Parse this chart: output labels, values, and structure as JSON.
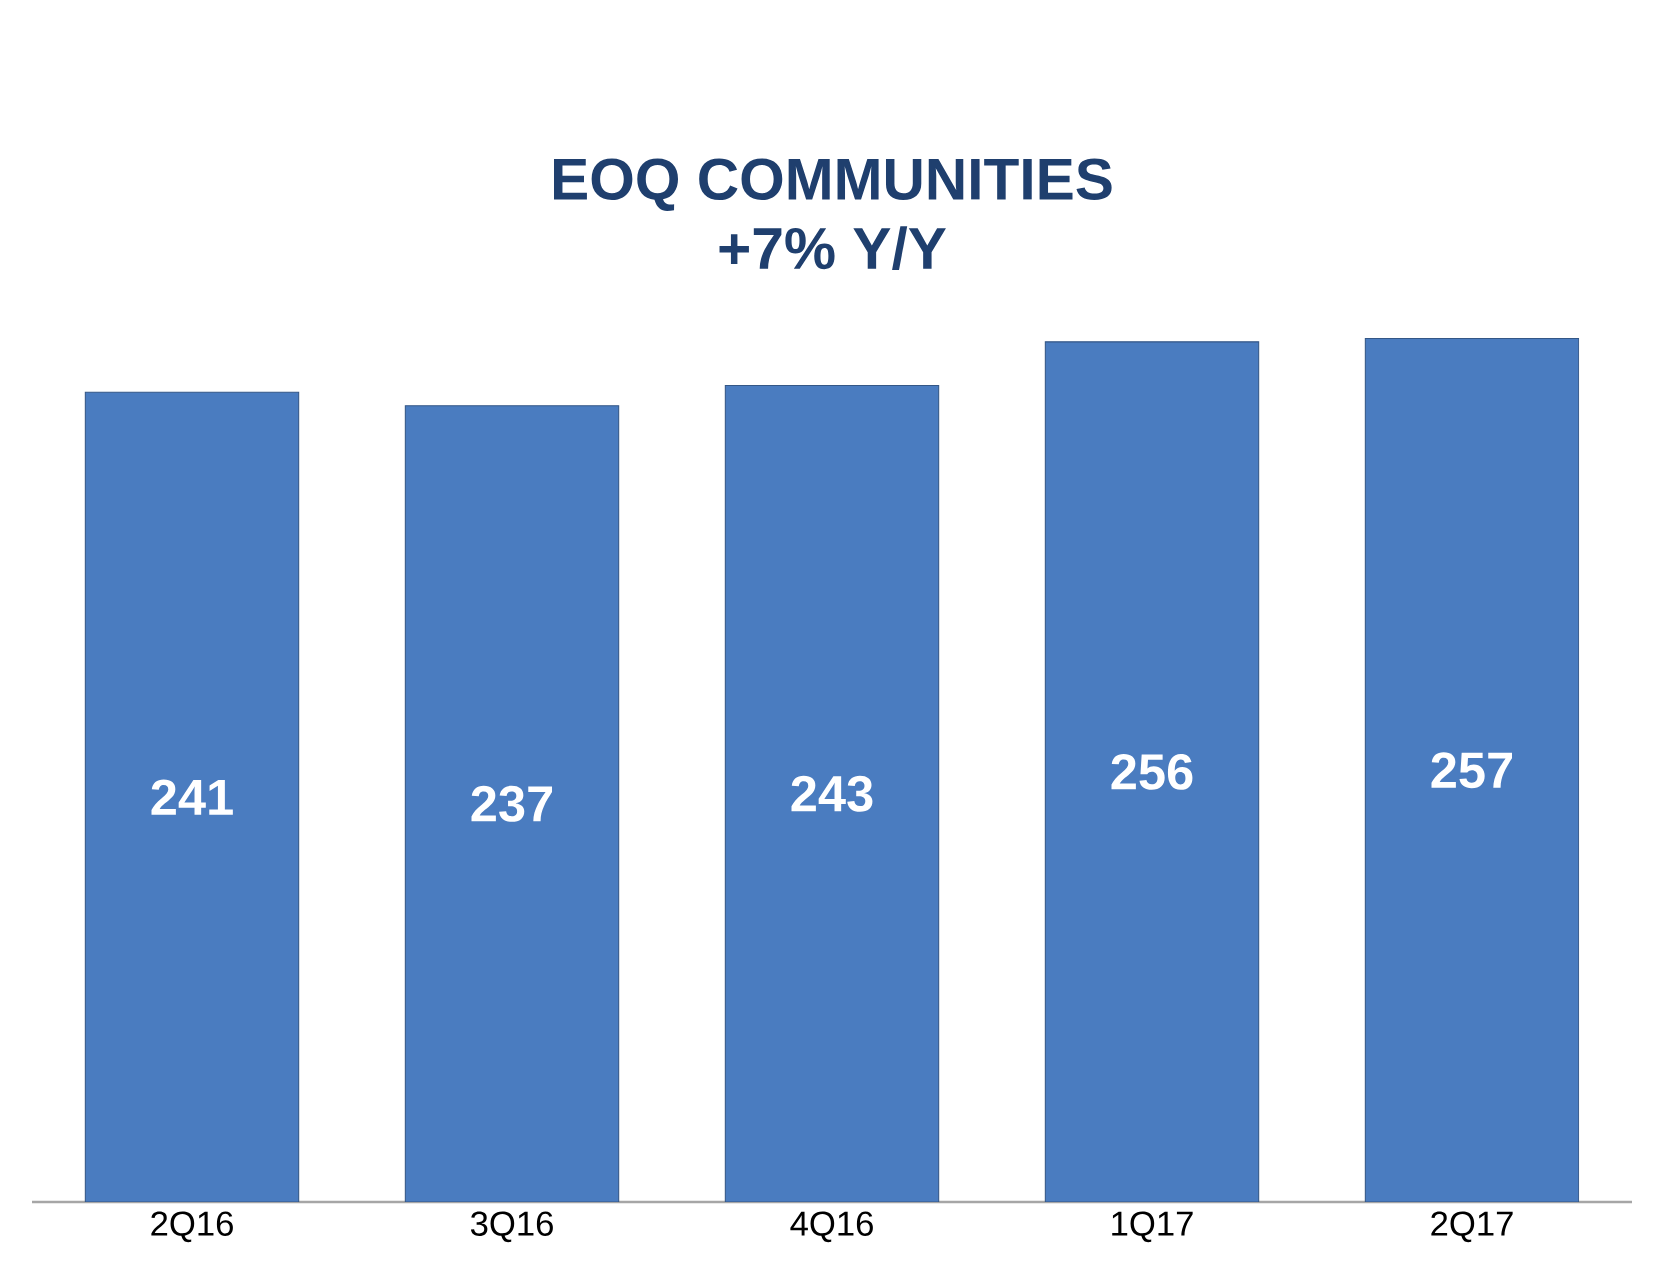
{
  "chart_data": {
    "type": "bar",
    "title": "EOQ COMMUNITIES",
    "subtitle": "+7% Y/Y",
    "categories": [
      "2Q16",
      "3Q16",
      "4Q16",
      "1Q17",
      "2Q17"
    ],
    "values": [
      241,
      237,
      243,
      256,
      257
    ],
    "color": "#4a7cc0",
    "tick_labels": "x",
    "data_labels": true,
    "grid": false
  }
}
